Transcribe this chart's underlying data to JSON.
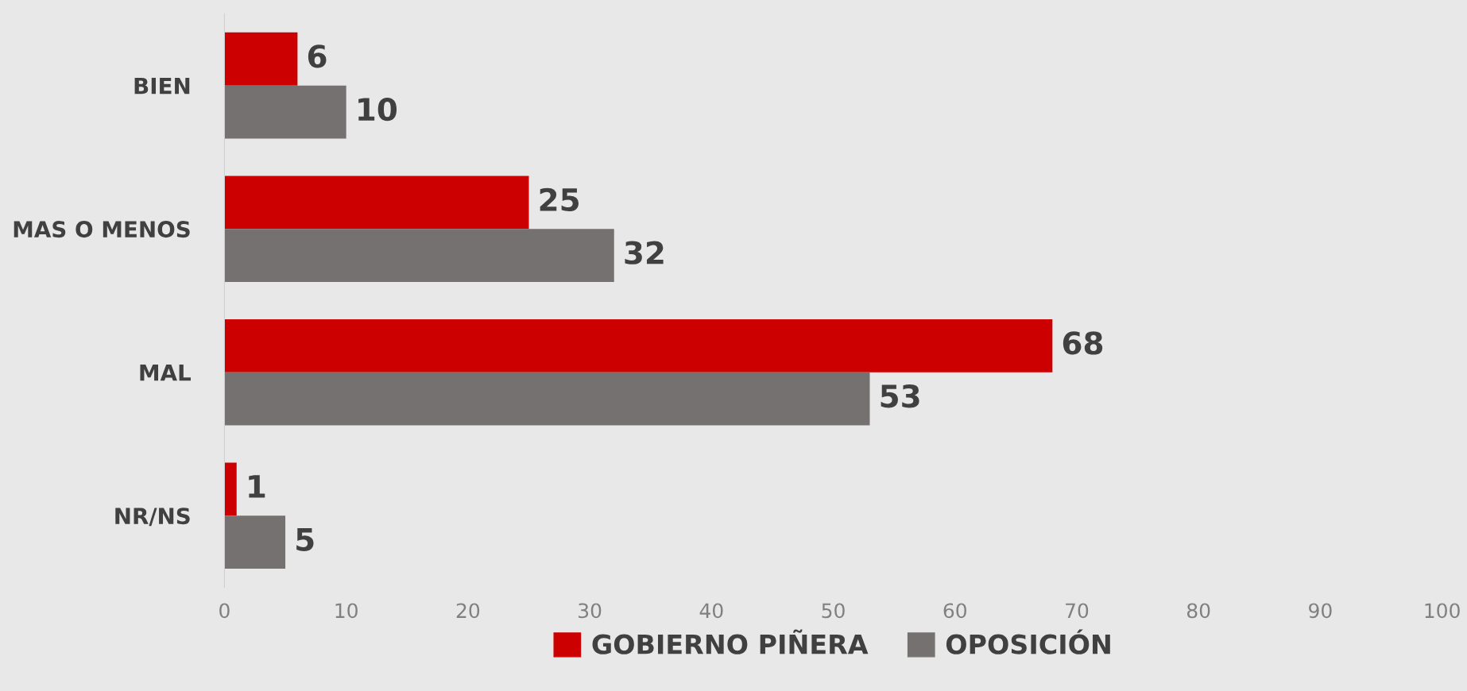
{
  "chart_data": {
    "type": "bar",
    "orientation": "horizontal",
    "categories": [
      "BIEN",
      "MAS O MENOS",
      "MAL",
      "NR/NS"
    ],
    "series": [
      {
        "name": "GOBIERNO PIÑERA",
        "color": "#cc0000",
        "values": [
          6,
          25,
          68,
          1
        ]
      },
      {
        "name": "OPOSICIÓN",
        "color": "#767171",
        "values": [
          10,
          32,
          53,
          5
        ]
      }
    ],
    "xlim": [
      0,
      100
    ],
    "xticks": [
      0,
      10,
      20,
      30,
      40,
      50,
      60,
      70,
      80,
      90,
      100
    ],
    "data_labels": true,
    "grid": false,
    "legend": "bottom"
  }
}
